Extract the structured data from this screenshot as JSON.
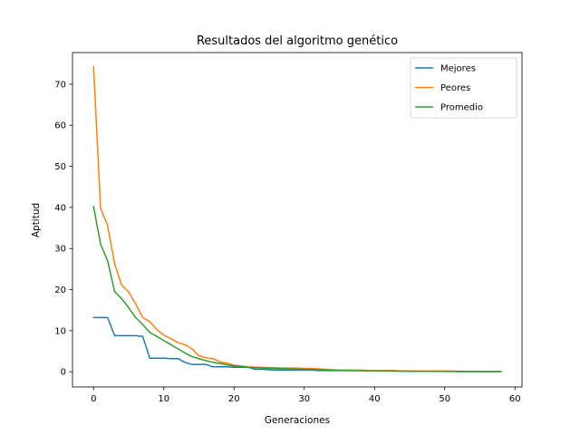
{
  "chart_data": {
    "type": "line",
    "title": "Resultados del algoritmo genético",
    "xlabel": "Generaciones",
    "ylabel": "Aptitud",
    "xlim": [
      -3,
      61
    ],
    "ylim": [
      -3.7,
      77.7
    ],
    "xticks": [
      0,
      10,
      20,
      30,
      40,
      50,
      60
    ],
    "yticks": [
      0,
      10,
      20,
      30,
      40,
      50,
      60,
      70
    ],
    "grid": false,
    "legend_position": "top-right",
    "series": [
      {
        "name": "Mejores",
        "color": "#1f77b4",
        "x": [
          0,
          1,
          2,
          3,
          4,
          5,
          6,
          7,
          8,
          9,
          10,
          11,
          12,
          13,
          14,
          15,
          16,
          17,
          18,
          19,
          20,
          21,
          22,
          23,
          24,
          25,
          26,
          27,
          28,
          29,
          30,
          31,
          32,
          33,
          34,
          35,
          36,
          37,
          38,
          39,
          40,
          41,
          42,
          43,
          44,
          45,
          46,
          47,
          48,
          49,
          50,
          51,
          52,
          53,
          54,
          55,
          56,
          57,
          58
        ],
        "values": [
          13.2,
          13.2,
          13.2,
          8.8,
          8.8,
          8.8,
          8.8,
          8.6,
          3.3,
          3.3,
          3.3,
          3.2,
          3.2,
          2.3,
          1.8,
          1.8,
          1.8,
          1.2,
          1.2,
          1.2,
          1.1,
          1.1,
          1.1,
          0.6,
          0.6,
          0.5,
          0.4,
          0.4,
          0.4,
          0.4,
          0.4,
          0.4,
          0.3,
          0.3,
          0.3,
          0.3,
          0.3,
          0.3,
          0.3,
          0.2,
          0.2,
          0.2,
          0.2,
          0.2,
          0.15,
          0.15,
          0.1,
          0.1,
          0.1,
          0.1,
          0.1,
          0.1,
          0.05,
          0.05,
          0.05,
          0.05,
          0.05,
          0.05,
          0.05
        ]
      },
      {
        "name": "Peores",
        "color": "#ff7f0e",
        "x": [
          0,
          1,
          2,
          3,
          4,
          5,
          6,
          7,
          8,
          9,
          10,
          11,
          12,
          13,
          14,
          15,
          16,
          17,
          18,
          19,
          20,
          21,
          22,
          23,
          24,
          25,
          26,
          27,
          28,
          29,
          30,
          31,
          32,
          33,
          34,
          35,
          36,
          37,
          38,
          39,
          40,
          41,
          42,
          43,
          44,
          45,
          46,
          47,
          48,
          49,
          50,
          51,
          52,
          53,
          54,
          55,
          56,
          57,
          58
        ],
        "values": [
          74.2,
          39.8,
          35.6,
          26.3,
          21.1,
          19.4,
          16.5,
          13.2,
          12.2,
          10.3,
          8.9,
          8.1,
          7.1,
          6.6,
          5.6,
          3.9,
          3.4,
          3.2,
          2.4,
          2.1,
          1.6,
          1.4,
          1.2,
          1.1,
          1.1,
          1.0,
          1.0,
          0.9,
          0.9,
          0.9,
          0.8,
          0.8,
          0.7,
          0.6,
          0.5,
          0.4,
          0.4,
          0.4,
          0.4,
          0.3,
          0.3,
          0.3,
          0.3,
          0.3,
          0.2,
          0.2,
          0.2,
          0.2,
          0.2,
          0.2,
          0.2,
          0.2,
          0.1,
          0.1,
          0.1,
          0.1,
          0.1,
          0.1,
          0.1
        ]
      },
      {
        "name": "Promedio",
        "color": "#2ca02c",
        "x": [
          0,
          1,
          2,
          3,
          4,
          5,
          6,
          7,
          8,
          9,
          10,
          11,
          12,
          13,
          14,
          15,
          16,
          17,
          18,
          19,
          20,
          21,
          22,
          23,
          24,
          25,
          26,
          27,
          28,
          29,
          30,
          31,
          32,
          33,
          34,
          35,
          36,
          37,
          38,
          39,
          40,
          41,
          42,
          43,
          44,
          45,
          46,
          47,
          48,
          49,
          50,
          51,
          52,
          53,
          54,
          55,
          56,
          57,
          58
        ],
        "values": [
          40.2,
          31.1,
          27.0,
          19.5,
          17.8,
          15.6,
          13.2,
          11.5,
          9.6,
          8.6,
          7.6,
          6.6,
          5.6,
          4.6,
          3.7,
          3.2,
          2.7,
          2.3,
          2.0,
          1.7,
          1.4,
          1.3,
          1.1,
          1.0,
          0.9,
          0.85,
          0.8,
          0.75,
          0.7,
          0.65,
          0.6,
          0.55,
          0.5,
          0.45,
          0.4,
          0.35,
          0.33,
          0.3,
          0.28,
          0.25,
          0.22,
          0.2,
          0.18,
          0.16,
          0.14,
          0.13,
          0.12,
          0.11,
          0.1,
          0.1,
          0.09,
          0.09,
          0.08,
          0.08,
          0.07,
          0.07,
          0.06,
          0.06,
          0.06
        ]
      }
    ]
  }
}
